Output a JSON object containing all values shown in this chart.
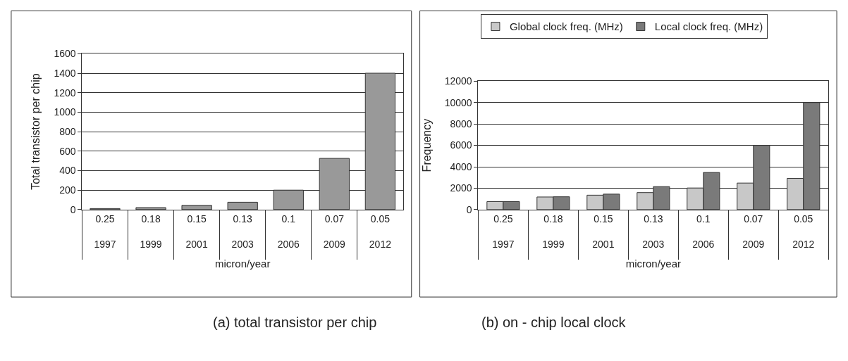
{
  "chart_data": [
    {
      "type": "bar",
      "ylabel": "Total transistor per chip",
      "xlabel": "micron/year",
      "categories": [
        "0.25\n1997",
        "0.18\n1999",
        "0.15\n2001",
        "0.13\n2003",
        "0.1\n2006",
        "0.07\n2009",
        "0.05\n2012"
      ],
      "values": [
        11,
        21,
        44,
        76,
        200,
        526,
        1400
      ],
      "color": "#999999",
      "ylim": [
        0,
        1600
      ],
      "yticks": [
        0,
        200,
        400,
        600,
        800,
        1000,
        1200,
        1400,
        1600
      ],
      "grid": "y",
      "annotations": [
        "(a) total transistor per chip"
      ]
    },
    {
      "type": "bar",
      "ylabel": "Frequency",
      "xlabel": "micron/year",
      "categories": [
        "0.25\n1997",
        "0.18\n1999",
        "0.15\n2001",
        "0.13\n2003",
        "0.1\n2006",
        "0.07\n2009",
        "0.05\n2012"
      ],
      "series": [
        {
          "name": "Global clock freq. (MHz)",
          "color": "#c8c8c8",
          "values": [
            750,
            1180,
            1350,
            1590,
            2020,
            2480,
            2920
          ]
        },
        {
          "name": "Local clock freq. (MHz)",
          "color": "#7a7a7a",
          "values": [
            750,
            1200,
            1450,
            2150,
            3470,
            6000,
            10000
          ]
        }
      ],
      "ylim": [
        0,
        12000
      ],
      "yticks": [
        0,
        2000,
        4000,
        6000,
        8000,
        10000,
        12000
      ],
      "grid": "y",
      "legend": "top",
      "annotations": [
        "(b) on - chip local clock"
      ]
    }
  ]
}
